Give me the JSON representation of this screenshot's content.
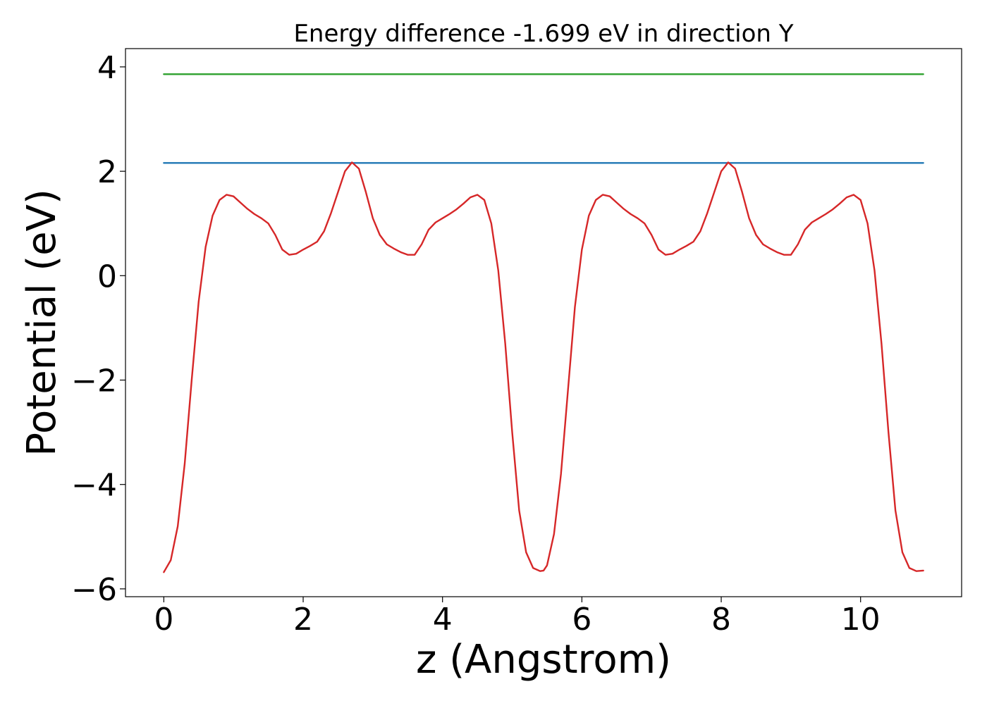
{
  "chart_data": {
    "type": "line",
    "title": "Energy difference -1.699 eV in direction Y",
    "xlabel": "z (Angstrom)",
    "ylabel": "Potential (eV)",
    "xlim": [
      -0.55,
      11.45
    ],
    "ylim": [
      -6.15,
      4.35
    ],
    "xticks": [
      0,
      2,
      4,
      6,
      8,
      10
    ],
    "yticks": [
      -6,
      -4,
      -2,
      0,
      2,
      4
    ],
    "xtick_labels": [
      "0",
      "2",
      "4",
      "6",
      "8",
      "10"
    ],
    "ytick_labels": [
      "−6",
      "−4",
      "−2",
      "0",
      "2",
      "4"
    ],
    "grid": false,
    "legend": null,
    "series": [
      {
        "color": "#2ca02c",
        "x": [
          0,
          10.9
        ],
        "y": [
          3.86,
          3.86
        ]
      },
      {
        "color": "#1f77b4",
        "x": [
          0,
          10.9
        ],
        "y": [
          2.16,
          2.16
        ]
      },
      {
        "color": "#d62728",
        "x": [
          0,
          0.1,
          0.2,
          0.3,
          0.4,
          0.5,
          0.6,
          0.7,
          0.8,
          0.9,
          1.0,
          1.1,
          1.2,
          1.3,
          1.4,
          1.5,
          1.6,
          1.7,
          1.8,
          1.9,
          2.0,
          2.1,
          2.2,
          2.3,
          2.4,
          2.5,
          2.6,
          2.7,
          2.8,
          2.9,
          3.0,
          3.1,
          3.2,
          3.3,
          3.4,
          3.5,
          3.6,
          3.7,
          3.8,
          3.9,
          4.0,
          4.1,
          4.2,
          4.3,
          4.4,
          4.5,
          4.6,
          4.7,
          4.8,
          4.9,
          5.0,
          5.1,
          5.2,
          5.3,
          5.4,
          5.45,
          5.5,
          5.6,
          5.7,
          5.8,
          5.9,
          6.0,
          6.1,
          6.2,
          6.3,
          6.4,
          6.5,
          6.6,
          6.7,
          6.8,
          6.9,
          7.0,
          7.1,
          7.2,
          7.3,
          7.4,
          7.5,
          7.6,
          7.7,
          7.8,
          7.9,
          8.0,
          8.1,
          8.2,
          8.3,
          8.4,
          8.5,
          8.6,
          8.7,
          8.8,
          8.9,
          9.0,
          9.1,
          9.2,
          9.3,
          9.4,
          9.5,
          9.6,
          9.7,
          9.8,
          9.9,
          10.0,
          10.1,
          10.2,
          10.3,
          10.4,
          10.5,
          10.6,
          10.7,
          10.8,
          10.9
        ],
        "y": [
          -5.68,
          -5.45,
          -4.8,
          -3.6,
          -2.0,
          -0.5,
          0.55,
          1.15,
          1.45,
          1.55,
          1.52,
          1.4,
          1.28,
          1.18,
          1.1,
          1.0,
          0.78,
          0.5,
          0.4,
          0.42,
          0.5,
          0.57,
          0.65,
          0.85,
          1.2,
          1.6,
          2.0,
          2.17,
          2.05,
          1.6,
          1.1,
          0.78,
          0.6,
          0.52,
          0.45,
          0.4,
          0.4,
          0.6,
          0.88,
          1.02,
          1.1,
          1.18,
          1.27,
          1.38,
          1.5,
          1.55,
          1.45,
          1.0,
          0.1,
          -1.3,
          -3.0,
          -4.5,
          -5.3,
          -5.6,
          -5.66,
          -5.65,
          -5.55,
          -4.95,
          -3.8,
          -2.2,
          -0.6,
          0.5,
          1.15,
          1.45,
          1.55,
          1.52,
          1.4,
          1.28,
          1.18,
          1.1,
          1.0,
          0.78,
          0.5,
          0.4,
          0.42,
          0.5,
          0.57,
          0.65,
          0.85,
          1.2,
          1.6,
          2.0,
          2.17,
          2.05,
          1.6,
          1.1,
          0.78,
          0.6,
          0.52,
          0.45,
          0.4,
          0.4,
          0.6,
          0.88,
          1.02,
          1.1,
          1.18,
          1.27,
          1.38,
          1.5,
          1.55,
          1.45,
          1.0,
          0.1,
          -1.3,
          -3.0,
          -4.5,
          -5.3,
          -5.6,
          -5.66,
          -5.65
        ]
      }
    ]
  }
}
